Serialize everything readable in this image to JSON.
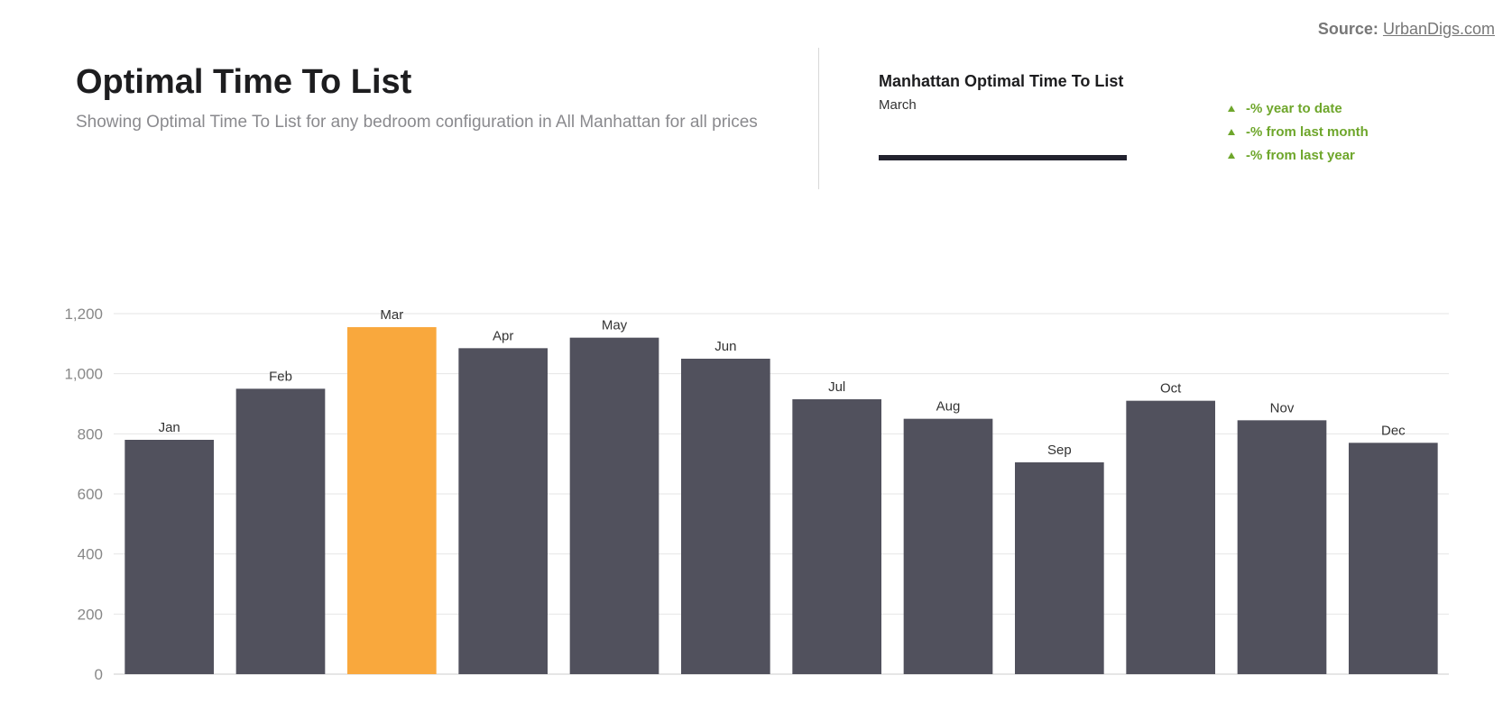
{
  "source": {
    "label": "Source:",
    "link_text": "UrbanDigs.com"
  },
  "header": {
    "title": "Optimal Time To List",
    "subtitle": "Showing Optimal Time To List for any bedroom configuration in All Manhattan for all prices"
  },
  "summary_card": {
    "title": "Manhattan Optimal Time To List",
    "period": "March"
  },
  "stats": [
    {
      "text": "-% year to date",
      "icon": "triangle-up-icon"
    },
    {
      "text": "-% from last month",
      "icon": "triangle-up-icon"
    },
    {
      "text": "-% from last year",
      "icon": "triangle-up-icon"
    }
  ],
  "colors": {
    "bar": "#51515d",
    "highlight": "#f9a83d",
    "stat_green": "#6ea62b",
    "grid": "#e6e6e6",
    "axis_text": "#888888",
    "label_text": "#333333"
  },
  "chart_data": {
    "type": "bar",
    "categories": [
      "Jan",
      "Feb",
      "Mar",
      "Apr",
      "May",
      "Jun",
      "Jul",
      "Aug",
      "Sep",
      "Oct",
      "Nov",
      "Dec"
    ],
    "values": [
      780,
      950,
      1155,
      1085,
      1120,
      1050,
      915,
      850,
      705,
      910,
      845,
      770
    ],
    "highlight_index": 2,
    "ylim": [
      0,
      1200
    ],
    "yticks": [
      0,
      200,
      400,
      600,
      800,
      1000,
      1200
    ],
    "ytick_labels": [
      "0",
      "200",
      "400",
      "600",
      "800",
      "1,000",
      "1,200"
    ],
    "grid": true,
    "legend": false,
    "title": "",
    "xlabel": "",
    "ylabel": ""
  }
}
